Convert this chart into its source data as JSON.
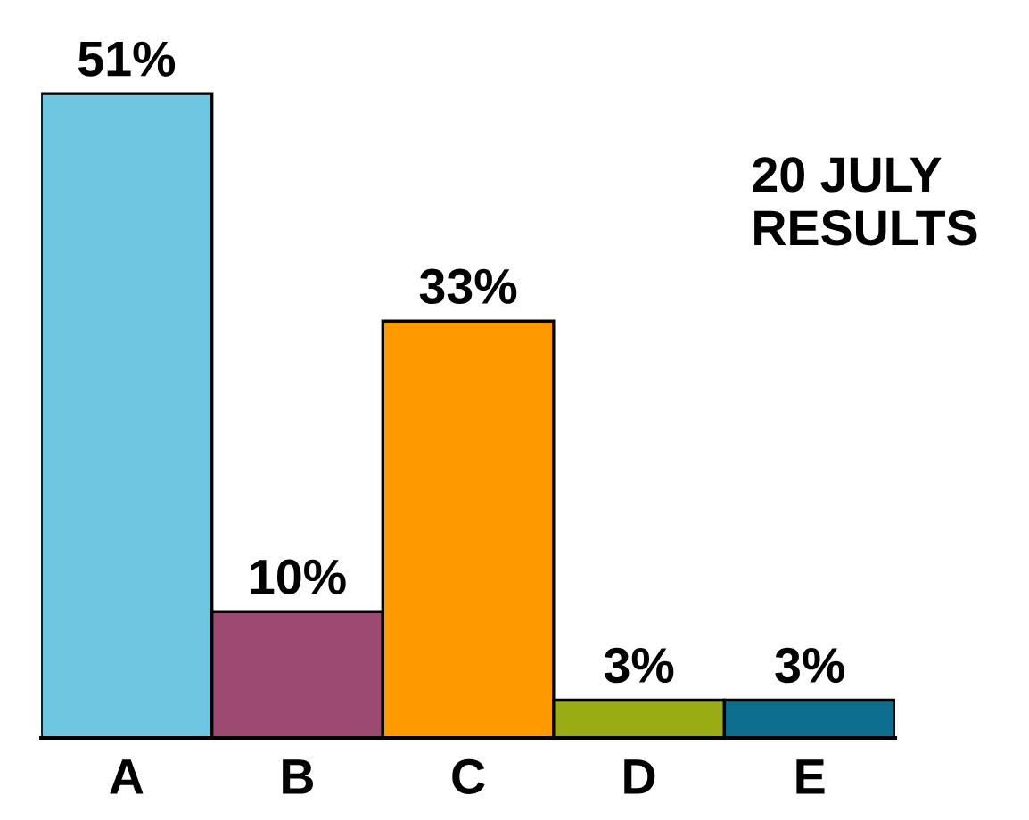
{
  "chart_data": {
    "type": "bar",
    "categories": [
      "A",
      "B",
      "C",
      "D",
      "E"
    ],
    "values": [
      51,
      10,
      33,
      3,
      3
    ],
    "colors": [
      "#6ec6e0",
      "#9c4a72",
      "#ff9900",
      "#9aac14",
      "#0e6e90"
    ],
    "value_labels": [
      "51%",
      "10%",
      "33%",
      "3%",
      "3%"
    ],
    "annotations": [
      "20 JULY\nRESULTS"
    ],
    "grid": false,
    "legend": false
  }
}
